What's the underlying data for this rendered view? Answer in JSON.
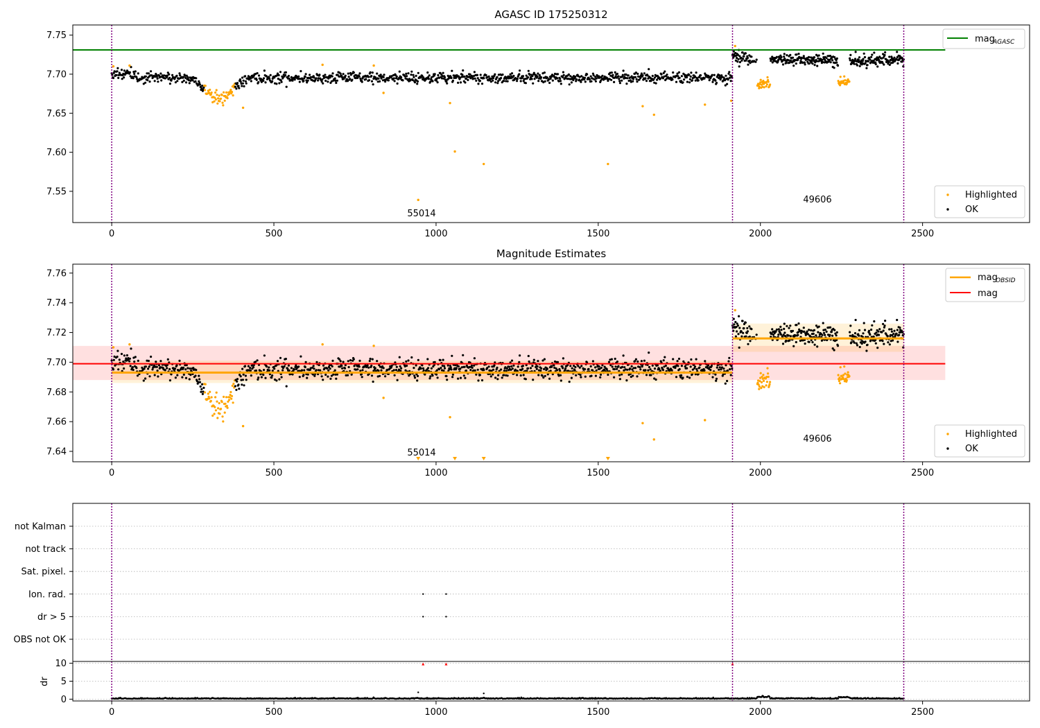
{
  "chart_data": [
    {
      "type": "scatter",
      "title": "AGASC ID 175250312",
      "xlim": [
        -120,
        2830
      ],
      "ylim": [
        7.51,
        7.763
      ],
      "xticks": [
        "0",
        "500",
        "1000",
        "1500",
        "2000",
        "2500"
      ],
      "xtick_values": [
        0,
        500,
        1000,
        1500,
        2000,
        2500
      ],
      "yticks": [
        "7.55",
        "7.60",
        "7.65",
        "7.70",
        "7.75"
      ],
      "ytick_values": [
        7.55,
        7.6,
        7.65,
        7.7,
        7.75
      ],
      "vlines": [
        0,
        1914,
        2442
      ],
      "hlines": [
        {
          "name": "mag_AGASC",
          "y": 7.731,
          "x_end": 2570,
          "color": "#008000"
        }
      ],
      "series": [
        {
          "name": "Highlighted",
          "color": "#ffa500",
          "points": [
            [
              5,
              7.71
            ],
            [
              55,
              7.711
            ],
            [
              650,
              7.712
            ],
            [
              808,
              7.711
            ],
            [
              405,
              7.657
            ],
            [
              838,
              7.676
            ],
            [
              1043,
              7.663
            ],
            [
              1058,
              7.601
            ],
            [
              1147,
              7.585
            ],
            [
              945,
              7.539
            ],
            [
              1530,
              7.585
            ],
            [
              1637,
              7.659
            ],
            [
              1672,
              7.648
            ],
            [
              1829,
              7.661
            ],
            [
              1910,
              7.666
            ],
            [
              1922,
              7.736
            ]
          ]
        },
        {
          "name": "OK",
          "color": "#000000"
        }
      ],
      "segments_desc": "synthetic dense cloud",
      "annotations": [
        {
          "text": "55014",
          "x": 960,
          "y": 7.521
        },
        {
          "text": "49606",
          "x": 2180,
          "y": 7.538
        }
      ],
      "legend": {
        "position": "upper-right / lower-right",
        "lines": [
          {
            "label_main": "mag",
            "label_sub": "AGASC"
          }
        ],
        "points": [
          "Highlighted",
          "OK"
        ]
      }
    },
    {
      "type": "scatter",
      "title": "Magnitude Estimates",
      "xlim": [
        -120,
        2830
      ],
      "ylim": [
        7.633,
        7.766
      ],
      "xticks": [
        "0",
        "500",
        "1000",
        "1500",
        "2000",
        "2500"
      ],
      "xtick_values": [
        0,
        500,
        1000,
        1500,
        2000,
        2500
      ],
      "yticks": [
        "7.64",
        "7.66",
        "7.68",
        "7.70",
        "7.72",
        "7.74",
        "7.76"
      ],
      "ytick_values": [
        7.64,
        7.66,
        7.68,
        7.7,
        7.72,
        7.74,
        7.76
      ],
      "vlines": [
        0,
        1914,
        2442
      ],
      "mag_line": {
        "y": 7.699,
        "band": [
          7.688,
          7.711
        ],
        "x_end": 2570,
        "color": "#ff0000"
      },
      "obsid_segments": [
        {
          "x0": 0,
          "x1": 1914,
          "y": 7.693,
          "band": [
            7.686,
            7.701
          ]
        },
        {
          "x0": 1914,
          "x1": 2442,
          "y": 7.716,
          "band": [
            7.707,
            7.726
          ]
        }
      ],
      "highlighted_extra": [
        [
          5,
          7.71
        ],
        [
          55,
          7.712
        ],
        [
          650,
          7.712
        ],
        [
          808,
          7.711
        ],
        [
          405,
          7.657
        ],
        [
          838,
          7.676
        ],
        [
          1043,
          7.663
        ],
        [
          1637,
          7.659
        ],
        [
          1672,
          7.648
        ],
        [
          1829,
          7.661
        ],
        [
          1922,
          7.735
        ]
      ],
      "offscale_markers": [
        945,
        1058,
        1147,
        1530
      ],
      "annotations": [
        {
          "text": "55014",
          "x": 960,
          "y": 7.636
        },
        {
          "text": "49606",
          "x": 2180,
          "y": 7.646
        }
      ],
      "legend": {
        "lines": [
          {
            "label_main": "mag",
            "label_sub": "OBSID",
            "color": "#ffa500"
          },
          {
            "label_main": "mag",
            "label_sub": "",
            "color": "#ff0000"
          }
        ],
        "points": [
          "Highlighted",
          "OK"
        ]
      }
    },
    {
      "type": "scatter",
      "title": "",
      "xlim": [
        -120,
        2830
      ],
      "flag_rows": [
        "not Kalman",
        "not track",
        "Sat. pixel.",
        "Ion. rad.",
        "dr > 5",
        "OBS not OK"
      ],
      "flag_points": [
        {
          "row": "not Kalman",
          "x": 1914
        },
        {
          "row": "Ion. rad.",
          "x": 960
        },
        {
          "row": "Ion. rad.",
          "x": 1031
        },
        {
          "row": "dr > 5",
          "x": 960
        },
        {
          "row": "dr > 5",
          "x": 1031
        }
      ],
      "vlines": [
        0,
        1914,
        2442
      ]
    },
    {
      "type": "scatter",
      "title": "",
      "ylabel": "dr",
      "xlim": [
        -120,
        2830
      ],
      "ylim": [
        -0.5,
        10.5
      ],
      "xticks": [
        "0",
        "500",
        "1000",
        "1500",
        "2000",
        "2500"
      ],
      "xtick_values": [
        0,
        500,
        1000,
        1500,
        2000,
        2500
      ],
      "yticks": [
        "0",
        "5",
        "10"
      ],
      "ytick_values": [
        0,
        5,
        10
      ],
      "clipped_markers": [
        960,
        1031,
        1914
      ],
      "outliers": [
        [
          945,
          1.9
        ],
        [
          1147,
          1.6
        ]
      ],
      "vlines": [
        0,
        1914,
        2442
      ]
    }
  ],
  "legend_labels": {
    "highlighted": "Highlighted",
    "ok": "OK"
  }
}
